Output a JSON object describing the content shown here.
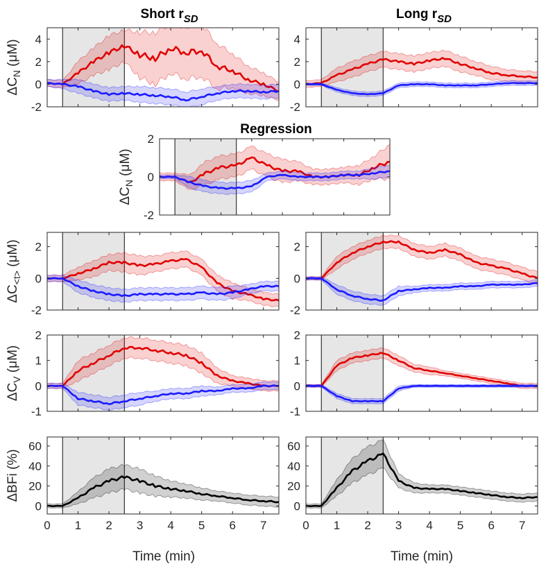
{
  "chart_data": {
    "type": "line",
    "titles": {
      "short": "Short r",
      "short_sub": "SD",
      "long": "Long r",
      "long_sub": "SD",
      "regression": "Regression"
    },
    "xlabel": "Time (min)",
    "xlim": [
      0,
      7.5
    ],
    "xticks": [
      0,
      1,
      2,
      3,
      4,
      5,
      6,
      7
    ],
    "stimulus_window": [
      0.5,
      2.5
    ],
    "x": [
      0,
      0.5,
      1,
      1.5,
      2,
      2.5,
      3,
      3.5,
      4,
      4.5,
      5,
      5.5,
      6,
      6.5,
      7,
      7.5
    ],
    "colors": {
      "red": "#e00000",
      "blue": "#1a1aff",
      "black": "#000000",
      "shade": "#e6e6e6"
    },
    "panels": [
      {
        "id": "short-cn",
        "ylabel": {
          "main": "ΔC",
          "sub": "N",
          "unit": " (μM)"
        },
        "ylim": [
          -2,
          5
        ],
        "yticks": [
          -2,
          0,
          2,
          4
        ],
        "series": [
          {
            "name": "red",
            "values": [
              0.1,
              0,
              1.0,
              2.0,
              2.8,
              3.4,
              2.6,
              2.3,
              3.2,
              2.8,
              3.0,
              1.6,
              1.2,
              0.4,
              0,
              -0.6
            ],
            "band": [
              0.3,
              0.3,
              1,
              1.2,
              1.5,
              1.4,
              2,
              2.3,
              2.2,
              2.3,
              2.3,
              2,
              1.5,
              1.2,
              1,
              0.8
            ]
          },
          {
            "name": "blue",
            "values": [
              0.1,
              0,
              -0.2,
              -0.6,
              -0.9,
              -0.8,
              -0.9,
              -1.0,
              -1.1,
              -1.4,
              -1.1,
              -0.8,
              -0.6,
              -0.6,
              -0.7,
              -0.6
            ],
            "band": [
              0.3,
              0.4,
              0.6,
              0.6,
              0.6,
              0.6,
              0.7,
              0.7,
              0.7,
              0.7,
              0.7,
              0.6,
              0.6,
              0.6,
              0.6,
              0.6
            ]
          }
        ]
      },
      {
        "id": "long-cn",
        "ylabel": null,
        "ylim": [
          -2,
          5
        ],
        "yticks": [
          -2,
          0,
          2,
          4
        ],
        "series": [
          {
            "name": "red",
            "values": [
              0,
              0.1,
              0.8,
              1.3,
              1.8,
              2.2,
              2.0,
              1.8,
              2.1,
              2.3,
              1.8,
              1.4,
              1.0,
              0.8,
              0.7,
              0.6
            ],
            "band": [
              0.3,
              0.3,
              0.6,
              0.7,
              0.7,
              0.7,
              0.7,
              0.7,
              0.7,
              0.7,
              0.7,
              0.6,
              0.6,
              0.5,
              0.5,
              0.5
            ]
          },
          {
            "name": "blue",
            "values": [
              0,
              0,
              -0.5,
              -0.8,
              -0.9,
              -0.8,
              -0.1,
              0,
              0,
              -0.1,
              -0.1,
              -0.1,
              0,
              0.1,
              0.1,
              0.1
            ],
            "band": [
              0.1,
              0.1,
              0.2,
              0.2,
              0.2,
              0.2,
              0.2,
              0.2,
              0.2,
              0.2,
              0.2,
              0.2,
              0.2,
              0.2,
              0.2,
              0.2
            ]
          }
        ]
      },
      {
        "id": "regression-cn",
        "ylabel": {
          "main": "ΔC",
          "sub": "N",
          "unit": " (μM)"
        },
        "ylim": [
          -2,
          2
        ],
        "yticks": [
          -2,
          0,
          2
        ],
        "series": [
          {
            "name": "red",
            "values": [
              0,
              0,
              -0.3,
              0.2,
              0.5,
              0.6,
              1.0,
              0.6,
              0.3,
              0.3,
              0,
              0,
              0.1,
              0.1,
              0.5,
              0.8
            ],
            "band": [
              0.2,
              0.2,
              0.4,
              0.6,
              0.6,
              0.6,
              0.6,
              0.6,
              0.6,
              0.5,
              0.4,
              0.4,
              0.4,
              0.5,
              0.6,
              0.9
            ]
          },
          {
            "name": "blue",
            "values": [
              0,
              0,
              -0.3,
              -0.5,
              -0.6,
              -0.6,
              -0.5,
              0,
              0.1,
              0,
              0,
              0,
              0.1,
              0.1,
              0.2,
              0.3
            ],
            "band": [
              0.1,
              0.1,
              0.3,
              0.3,
              0.3,
              0.3,
              0.3,
              0.2,
              0.2,
              0.2,
              0.2,
              0.2,
              0.2,
              0.2,
              0.3,
              0.3
            ]
          }
        ]
      },
      {
        "id": "short-ct",
        "ylabel": {
          "main": "ΔC",
          "sub": "<t>",
          "unit": " (μM)"
        },
        "ylim": [
          -2,
          2.9
        ],
        "yticks": [
          -2,
          0,
          2
        ],
        "series": [
          {
            "name": "red",
            "values": [
              0,
              0,
              0.3,
              0.6,
              1.0,
              1.0,
              0.8,
              0.9,
              1.1,
              1.2,
              0.7,
              -0.3,
              -0.8,
              -1.0,
              -1.3,
              -1.4
            ],
            "band": [
              0.2,
              0.2,
              0.4,
              0.5,
              0.5,
              0.6,
              0.6,
              0.5,
              0.5,
              0.5,
              0.5,
              0.5,
              0.5,
              0.4,
              0.4,
              0.4
            ]
          },
          {
            "name": "blue",
            "values": [
              0,
              0,
              -0.5,
              -0.8,
              -1.0,
              -1.1,
              -1.0,
              -1.0,
              -1.0,
              -1.0,
              -0.9,
              -1.0,
              -0.9,
              -0.7,
              -0.5,
              -0.5
            ],
            "band": [
              0.2,
              0.2,
              0.4,
              0.4,
              0.4,
              0.4,
              0.4,
              0.4,
              0.4,
              0.4,
              0.4,
              0.4,
              0.4,
              0.3,
              0.3,
              0.3
            ]
          }
        ]
      },
      {
        "id": "long-ct",
        "ylabel": null,
        "ylim": [
          -2,
          2.9
        ],
        "yticks": [
          -2,
          0,
          2
        ],
        "series": [
          {
            "name": "red",
            "values": [
              0,
              0,
              1.0,
              1.6,
              2.0,
              2.3,
              2.3,
              1.8,
              1.6,
              1.8,
              1.5,
              1.0,
              0.8,
              0.6,
              0.3,
              0
            ],
            "band": [
              0.1,
              0.1,
              0.4,
              0.4,
              0.4,
              0.4,
              0.4,
              0.4,
              0.4,
              0.4,
              0.4,
              0.4,
              0.4,
              0.4,
              0.4,
              0.4
            ]
          },
          {
            "name": "blue",
            "values": [
              0,
              0,
              -0.7,
              -1.1,
              -1.3,
              -1.4,
              -0.8,
              -0.7,
              -0.6,
              -0.6,
              -0.5,
              -0.5,
              -0.4,
              -0.4,
              -0.4,
              -0.3
            ],
            "band": [
              0.1,
              0.1,
              0.3,
              0.3,
              0.3,
              0.3,
              0.3,
              0.2,
              0.2,
              0.2,
              0.2,
              0.2,
              0.2,
              0.2,
              0.2,
              0.2
            ]
          }
        ]
      },
      {
        "id": "short-cv",
        "ylabel": {
          "main": "ΔC",
          "sub": "V",
          "unit": " (μM)"
        },
        "ylim": [
          -1,
          2
        ],
        "yticks": [
          -1,
          0,
          1,
          2
        ],
        "series": [
          {
            "name": "red",
            "values": [
              0,
              0,
              0.6,
              0.9,
              1.2,
              1.5,
              1.5,
              1.4,
              1.3,
              1.2,
              0.9,
              0.4,
              0.2,
              0.1,
              0,
              0
            ],
            "band": [
              0.1,
              0.1,
              0.4,
              0.4,
              0.4,
              0.4,
              0.4,
              0.4,
              0.4,
              0.4,
              0.4,
              0.3,
              0.2,
              0.2,
              0.2,
              0.2
            ]
          },
          {
            "name": "blue",
            "values": [
              0,
              0,
              -0.5,
              -0.6,
              -0.7,
              -0.6,
              -0.5,
              -0.4,
              -0.3,
              -0.3,
              -0.2,
              -0.2,
              -0.1,
              -0.1,
              0,
              0
            ],
            "band": [
              0.1,
              0.1,
              0.25,
              0.25,
              0.25,
              0.25,
              0.25,
              0.2,
              0.2,
              0.2,
              0.2,
              0.15,
              0.15,
              0.15,
              0.15,
              0.15
            ]
          }
        ]
      },
      {
        "id": "long-cv",
        "ylabel": null,
        "ylim": [
          -1,
          2
        ],
        "yticks": [
          -1,
          0,
          1,
          2
        ],
        "series": [
          {
            "name": "red",
            "values": [
              0,
              0,
              0.8,
              1.1,
              1.2,
              1.3,
              1.0,
              0.7,
              0.6,
              0.5,
              0.4,
              0.3,
              0.2,
              0.1,
              0,
              0
            ],
            "band": [
              0.05,
              0.05,
              0.2,
              0.2,
              0.2,
              0.2,
              0.2,
              0.15,
              0.15,
              0.1,
              0.1,
              0.1,
              0.1,
              0.1,
              0.1,
              0.1
            ]
          },
          {
            "name": "blue",
            "values": [
              0,
              0,
              -0.4,
              -0.6,
              -0.6,
              -0.6,
              -0.1,
              0,
              0,
              0,
              0,
              0,
              0,
              0,
              0,
              0
            ],
            "band": [
              0.05,
              0.05,
              0.1,
              0.1,
              0.1,
              0.1,
              0.1,
              0.05,
              0.05,
              0.05,
              0.05,
              0.05,
              0.05,
              0.05,
              0.05,
              0.05
            ]
          }
        ]
      },
      {
        "id": "short-bfi",
        "ylabel": {
          "main": "ΔBFi (%)",
          "sub": "",
          "unit": ""
        },
        "ylim": [
          -8,
          69
        ],
        "yticks": [
          0,
          20,
          40,
          60
        ],
        "series": [
          {
            "name": "black",
            "values": [
              0,
              0,
              8,
              18,
              25,
              29,
              25,
              20,
              17,
              15,
              12,
              10,
              8,
              6,
              5,
              4
            ],
            "band": [
              2,
              2,
              6,
              10,
              12,
              12,
              12,
              10,
              8,
              7,
              6,
              5,
              5,
              5,
              5,
              5
            ]
          }
        ]
      },
      {
        "id": "long-bfi",
        "ylabel": null,
        "ylim": [
          -8,
          69
        ],
        "yticks": [
          0,
          20,
          40,
          60
        ],
        "series": [
          {
            "name": "black",
            "values": [
              0,
              0,
              18,
              35,
              45,
              52,
              25,
              18,
              17,
              17,
              15,
              13,
              11,
              9,
              8,
              9
            ],
            "band": [
              2,
              2,
              8,
              12,
              14,
              14,
              7,
              5,
              4,
              4,
              4,
              4,
              4,
              4,
              4,
              4
            ]
          }
        ]
      }
    ]
  }
}
